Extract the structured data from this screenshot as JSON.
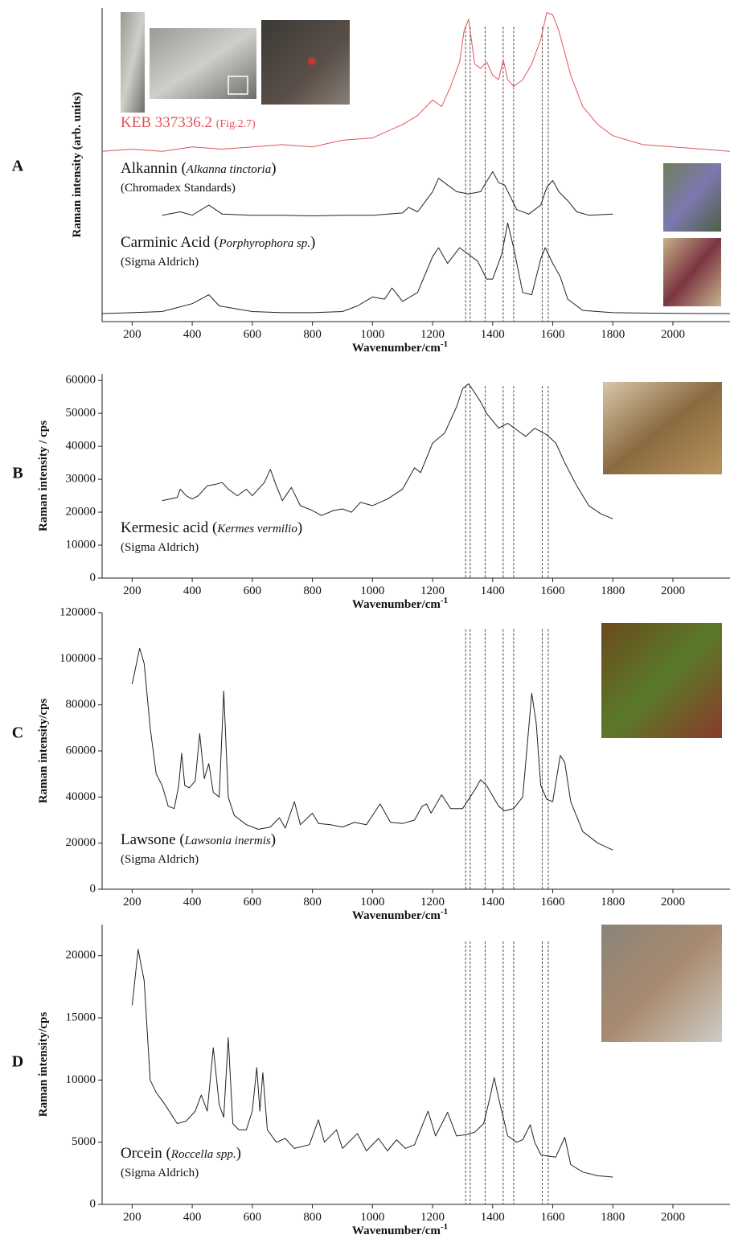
{
  "chart_data": [
    {
      "type": "line",
      "panel": "A",
      "ylabel": "Raman intensity (arb. units)",
      "xlabel": "Wavenumber/cm",
      "xlabel_sup": "-1",
      "xlim": [
        100,
        2190
      ],
      "xticks": [
        200,
        400,
        600,
        800,
        1000,
        1200,
        1400,
        1600,
        1800,
        2000
      ],
      "ylim": [
        0,
        14
      ],
      "reference_lines": [
        1310,
        1325,
        1375,
        1435,
        1470,
        1565,
        1585
      ],
      "series": [
        {
          "label": [
            {
              "text": "KEB 337336.2 "
            },
            {
              "text": "(Fig.2.7)",
              "small": true
            }
          ],
          "color": "#e0555a",
          "x": [
            100,
            200,
            300,
            400,
            500,
            600,
            700,
            800,
            900,
            1000,
            1050,
            1100,
            1150,
            1200,
            1230,
            1260,
            1290,
            1305,
            1320,
            1340,
            1360,
            1380,
            1400,
            1420,
            1435,
            1450,
            1470,
            1500,
            1530,
            1560,
            1580,
            1600,
            1620,
            1640,
            1660,
            1700,
            1750,
            1800,
            1900,
            2000,
            2100,
            2190
          ],
          "values": [
            7.6,
            7.7,
            7.6,
            7.8,
            7.7,
            7.8,
            7.9,
            7.8,
            8.1,
            8.2,
            8.5,
            8.8,
            9.2,
            9.9,
            9.6,
            10.5,
            11.6,
            13.0,
            13.5,
            11.5,
            11.3,
            11.6,
            11.0,
            10.8,
            11.7,
            10.8,
            10.5,
            10.8,
            11.5,
            12.6,
            13.8,
            13.7,
            13.0,
            12.0,
            11.0,
            9.6,
            8.8,
            8.3,
            7.9,
            7.8,
            7.7,
            7.6
          ]
        },
        {
          "label": [
            {
              "text": "Alkannin ("
            },
            {
              "text": "Alkanna tinctoria",
              "italic": true
            },
            {
              "text": ")"
            }
          ],
          "source": "(Chromadex Standards)",
          "color": "#222222",
          "x": [
            300,
            360,
            400,
            455,
            500,
            600,
            700,
            800,
            900,
            1000,
            1100,
            1120,
            1150,
            1200,
            1220,
            1240,
            1280,
            1320,
            1360,
            1400,
            1420,
            1440,
            1480,
            1520,
            1560,
            1580,
            1600,
            1620,
            1650,
            1680,
            1720,
            1800
          ],
          "values": [
            4.75,
            4.9,
            4.75,
            5.2,
            4.8,
            4.75,
            4.75,
            4.72,
            4.75,
            4.75,
            4.85,
            5.1,
            4.9,
            5.8,
            6.4,
            6.2,
            5.8,
            5.7,
            5.8,
            6.7,
            6.2,
            6.1,
            5.0,
            4.8,
            5.2,
            6.0,
            6.3,
            5.8,
            5.4,
            4.9,
            4.75,
            4.8
          ]
        },
        {
          "label": [
            {
              "text": "Carminic Acid ("
            },
            {
              "text": "Porphyrophora sp.",
              "italic": true
            },
            {
              "text": ")"
            }
          ],
          "source": "(Sigma Aldrich)",
          "color": "#222222",
          "x": [
            100,
            200,
            300,
            400,
            455,
            490,
            600,
            700,
            800,
            900,
            950,
            1000,
            1040,
            1065,
            1100,
            1150,
            1200,
            1220,
            1250,
            1290,
            1320,
            1350,
            1380,
            1400,
            1430,
            1450,
            1470,
            1500,
            1530,
            1560,
            1575,
            1600,
            1625,
            1650,
            1700,
            1800,
            1900,
            2000,
            2100,
            2190
          ],
          "values": [
            0.36,
            0.4,
            0.45,
            0.8,
            1.2,
            0.7,
            0.45,
            0.4,
            0.4,
            0.45,
            0.7,
            1.1,
            1.0,
            1.5,
            0.9,
            1.3,
            2.9,
            3.3,
            2.6,
            3.3,
            3.0,
            2.7,
            1.9,
            1.9,
            3.0,
            4.4,
            3.3,
            1.3,
            1.2,
            2.8,
            3.3,
            2.6,
            2.0,
            1.0,
            0.5,
            0.4,
            0.38,
            0.37,
            0.36,
            0.36
          ]
        }
      ]
    },
    {
      "type": "line",
      "panel": "B",
      "ylabel": "Raman intensity / cps",
      "xlabel": "Wavenumber/cm",
      "xlabel_sup": "-1",
      "xlim": [
        100,
        2190
      ],
      "xticks": [
        200,
        400,
        600,
        800,
        1000,
        1200,
        1400,
        1600,
        1800,
        2000
      ],
      "ylim": [
        0,
        62000
      ],
      "yticks": [
        0,
        10000,
        20000,
        30000,
        40000,
        50000,
        60000
      ],
      "reference_lines": [
        1310,
        1325,
        1375,
        1435,
        1470,
        1565,
        1585
      ],
      "series": [
        {
          "label": [
            {
              "text": "Kermesic acid ("
            },
            {
              "text": "Kermes vermilio",
              "italic": true
            },
            {
              "text": ")"
            }
          ],
          "source": "(Sigma Aldrich)",
          "color": "#222222",
          "x": [
            300,
            350,
            360,
            380,
            400,
            420,
            450,
            480,
            500,
            520,
            550,
            580,
            600,
            640,
            660,
            680,
            700,
            730,
            760,
            800,
            830,
            870,
            900,
            930,
            960,
            1000,
            1050,
            1100,
            1140,
            1160,
            1200,
            1240,
            1280,
            1300,
            1320,
            1335,
            1360,
            1380,
            1420,
            1450,
            1480,
            1510,
            1540,
            1560,
            1580,
            1610,
            1640,
            1680,
            1720,
            1760,
            1800
          ],
          "values": [
            23500,
            24500,
            27000,
            25000,
            24000,
            25000,
            28000,
            28500,
            29000,
            27000,
            25000,
            27000,
            25000,
            29000,
            33000,
            28000,
            23500,
            27500,
            22000,
            20500,
            19000,
            20500,
            21000,
            20000,
            23000,
            22000,
            24000,
            27000,
            33500,
            32000,
            41000,
            44000,
            52000,
            57500,
            59000,
            57000,
            53500,
            50000,
            45500,
            47000,
            45000,
            43000,
            45500,
            44500,
            43500,
            41000,
            35000,
            28000,
            22000,
            19500,
            18000
          ]
        }
      ]
    },
    {
      "type": "line",
      "panel": "C",
      "ylabel": "Raman intensity/cps",
      "xlabel": "Wavenumber/cm",
      "xlabel_sup": "-1",
      "xlim": [
        100,
        2190
      ],
      "xticks": [
        200,
        400,
        600,
        800,
        1000,
        1200,
        1400,
        1600,
        1800,
        2000
      ],
      "ylim": [
        0,
        120000
      ],
      "yticks": [
        0,
        20000,
        40000,
        60000,
        80000,
        100000,
        120000
      ],
      "reference_lines": [
        1310,
        1325,
        1375,
        1435,
        1470,
        1565,
        1585
      ],
      "series": [
        {
          "label": [
            {
              "text": "Lawsone ("
            },
            {
              "text": "Lawsonia inermis",
              "italic": true
            },
            {
              "text": ")"
            }
          ],
          "source": "(Sigma Aldrich)",
          "color": "#222222",
          "x": [
            200,
            225,
            240,
            260,
            280,
            300,
            320,
            340,
            355,
            365,
            375,
            390,
            410,
            425,
            440,
            455,
            470,
            490,
            505,
            520,
            540,
            580,
            620,
            660,
            690,
            710,
            740,
            760,
            800,
            820,
            860,
            900,
            940,
            980,
            1025,
            1060,
            1100,
            1140,
            1165,
            1180,
            1195,
            1230,
            1260,
            1300,
            1320,
            1340,
            1360,
            1380,
            1420,
            1440,
            1470,
            1500,
            1530,
            1545,
            1560,
            1580,
            1600,
            1625,
            1640,
            1660,
            1700,
            1750,
            1800
          ],
          "values": [
            89000,
            104500,
            98000,
            70000,
            50000,
            45000,
            36000,
            35000,
            45000,
            59000,
            45000,
            44000,
            47000,
            67500,
            48000,
            54500,
            42000,
            40000,
            86000,
            40000,
            32000,
            28000,
            26000,
            27000,
            31000,
            26500,
            38000,
            28000,
            33000,
            28500,
            28000,
            27000,
            29000,
            28000,
            37000,
            29000,
            28500,
            30000,
            36000,
            37000,
            33000,
            41000,
            35000,
            35000,
            39000,
            43000,
            47500,
            45000,
            36000,
            34000,
            35000,
            40000,
            85000,
            72000,
            45000,
            39000,
            38000,
            58000,
            55000,
            38000,
            25000,
            20000,
            17000
          ]
        }
      ]
    },
    {
      "type": "line",
      "panel": "D",
      "ylabel": "Raman intensity/cps",
      "xlabel": "Wavenumber/cm",
      "xlabel_sup": "-1",
      "xlim": [
        100,
        2190
      ],
      "xticks": [
        200,
        400,
        600,
        800,
        1000,
        1200,
        1400,
        1600,
        1800,
        2000
      ],
      "ylim": [
        0,
        22500
      ],
      "yticks": [
        0,
        5000,
        10000,
        15000,
        20000
      ],
      "reference_lines": [
        1310,
        1325,
        1375,
        1435,
        1470,
        1565,
        1585
      ],
      "series": [
        {
          "label": [
            {
              "text": "Orcein ("
            },
            {
              "text": "Roccella spp.",
              "italic": true
            },
            {
              "text": ")"
            }
          ],
          "source": "(Sigma Aldrich)",
          "color": "#222222",
          "x": [
            200,
            220,
            240,
            260,
            280,
            310,
            350,
            380,
            410,
            430,
            450,
            470,
            490,
            505,
            520,
            535,
            555,
            580,
            600,
            615,
            625,
            635,
            650,
            680,
            710,
            740,
            790,
            820,
            840,
            880,
            900,
            950,
            980,
            1020,
            1050,
            1080,
            1110,
            1140,
            1185,
            1210,
            1250,
            1280,
            1310,
            1340,
            1370,
            1390,
            1405,
            1420,
            1450,
            1480,
            1500,
            1525,
            1540,
            1560,
            1580,
            1610,
            1640,
            1660,
            1700,
            1750,
            1800
          ],
          "values": [
            16000,
            20500,
            18000,
            10000,
            9000,
            8000,
            6500,
            6700,
            7500,
            8800,
            7500,
            12600,
            8000,
            7000,
            13400,
            6500,
            6000,
            6000,
            7500,
            11000,
            7500,
            10600,
            6000,
            5000,
            5300,
            4500,
            4800,
            6800,
            5000,
            6000,
            4500,
            5700,
            4300,
            5300,
            4300,
            5200,
            4500,
            4800,
            7500,
            5500,
            7400,
            5500,
            5600,
            5800,
            6500,
            8500,
            10200,
            8500,
            5500,
            5000,
            5200,
            6400,
            5000,
            4000,
            3900,
            3800,
            5400,
            3200,
            2600,
            2300,
            2200
          ]
        }
      ]
    }
  ]
}
